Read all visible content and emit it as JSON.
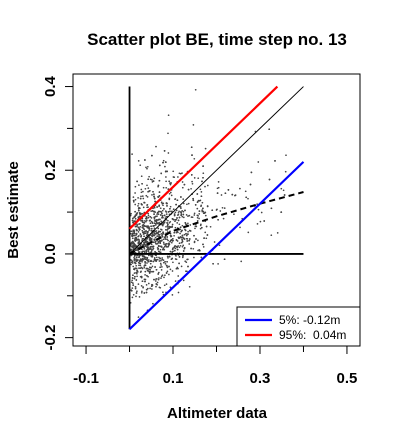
{
  "chart_data": {
    "type": "scatter",
    "title": "Scatter plot BE, time step no. 13",
    "xlabel": "Altimeter data",
    "ylabel": "Best estimate",
    "xlim": [
      -0.13,
      0.53
    ],
    "ylim": [
      -0.22,
      0.43
    ],
    "x_ticks": [
      -0.1,
      0.1,
      0.3,
      0.5
    ],
    "x_tick_labels": [
      "-0.1",
      "0.1",
      "0.3",
      "0.5"
    ],
    "x_minor_ticks": [
      0.0,
      0.2,
      0.4
    ],
    "y_ticks": [
      -0.2,
      0.0,
      0.2,
      0.4
    ],
    "y_tick_labels": [
      "-0.2",
      "0.0",
      "0.2",
      "0.4"
    ],
    "y_minor_ticks": [
      -0.1,
      0.1,
      0.3
    ],
    "point_count": 1700,
    "reference_lines": {
      "vertical_x": 0.0,
      "vertical_y_range": [
        -0.18,
        0.4
      ],
      "horizontal_y": 0.0,
      "horizontal_x_range": [
        0.0,
        0.4
      ]
    },
    "identity_line": {
      "x": [
        0.0,
        0.4
      ],
      "y": [
        0.0,
        0.4
      ]
    },
    "fit_line": {
      "x": [
        0.0,
        0.1,
        0.2,
        0.3,
        0.4
      ],
      "y": [
        0.0,
        0.055,
        0.09,
        0.12,
        0.148
      ]
    },
    "series": [
      {
        "name": "5%: -0.12m",
        "color": "#0000ff",
        "x": [
          0.0,
          0.4
        ],
        "y": [
          -0.18,
          0.22
        ]
      },
      {
        "name": "95%:  0.04m",
        "color": "#ff0000",
        "x": [
          0.0,
          0.34
        ],
        "y": [
          0.06,
          0.4
        ]
      }
    ],
    "legend": {
      "position": "bottom-right",
      "entries": [
        "5%: -0.12m",
        "95%:  0.04m"
      ],
      "colors": [
        "#0000ff",
        "#ff0000"
      ]
    },
    "point_color": "#444444"
  }
}
